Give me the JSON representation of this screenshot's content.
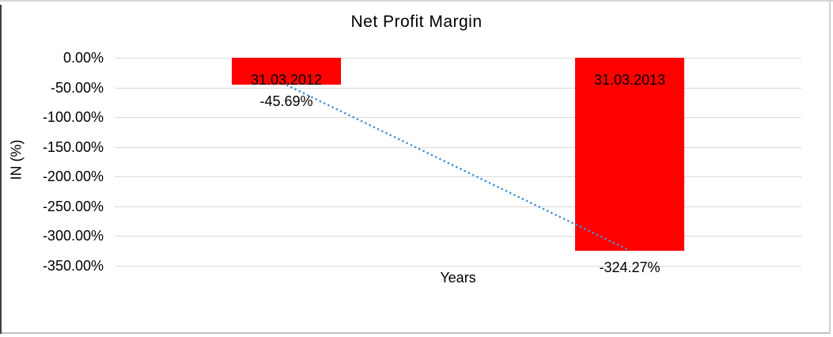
{
  "window": {
    "background": "#FFFFFF"
  },
  "chart_data": {
    "type": "bar",
    "title": "Net Profit Margin",
    "xlabel": "Years",
    "ylabel": "IN (%)",
    "categories": [
      "31.03.2012",
      "31.03.2013"
    ],
    "series": [
      {
        "name": "Net Profit Margin",
        "values": [
          -45.69,
          -324.27
        ]
      }
    ],
    "data_labels": [
      "-45.69%",
      "-324.27%"
    ],
    "yticks": [
      "0.00%",
      "-50.00%",
      "-100.00%",
      "-150.00%",
      "-200.00%",
      "-250.00%",
      "-300.00%",
      "-350.00%"
    ],
    "ytick_values": [
      0,
      -50,
      -100,
      -150,
      -200,
      -250,
      -300,
      -350
    ],
    "ylim": [
      -350,
      0
    ],
    "grid": true,
    "legend": "none",
    "bar_color": "#FF0000",
    "gridline_color": "#D9D9D9",
    "text_color": "#000000",
    "trendline": {
      "type": "linear",
      "style": "dotted",
      "color": "#4B8FD2",
      "from_value": -45.69,
      "to_value": -324.27
    }
  }
}
